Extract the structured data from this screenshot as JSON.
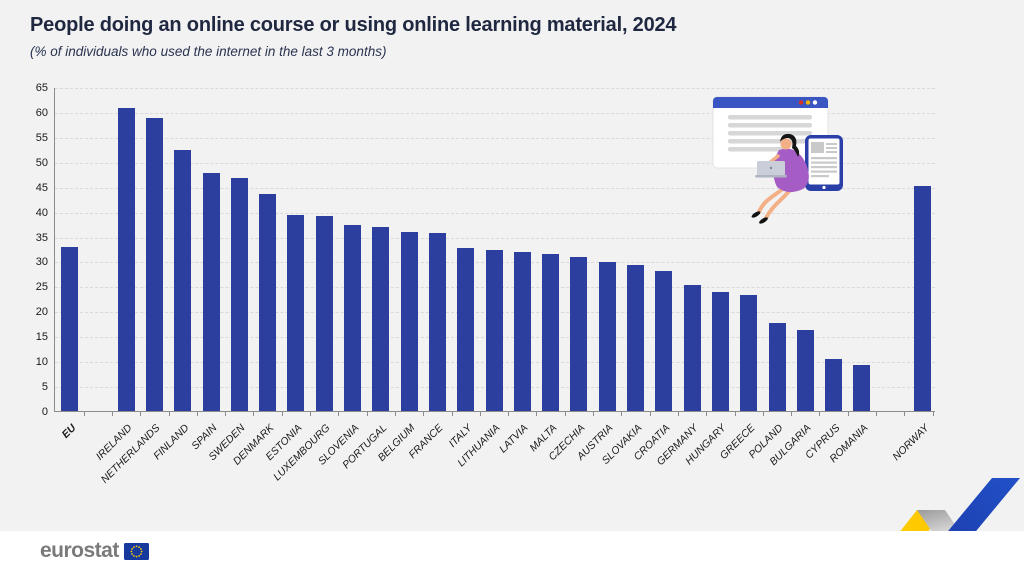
{
  "chart_data": {
    "type": "bar",
    "title": "People doing an online course or using online learning material, 2024",
    "subtitle": "(% of individuals who used the internet in the last 3 months)",
    "categories": [
      "EU",
      "IRELAND",
      "NETHERLANDS",
      "FINLAND",
      "SPAIN",
      "SWEDEN",
      "DENMARK",
      "ESTONIA",
      "LUXEMBOURG",
      "SLOVENIA",
      "PORTUGAL",
      "BELGIUM",
      "FRANCE",
      "ITALY",
      "LITHUANIA",
      "LATVIA",
      "MALTA",
      "CZECHIA",
      "AUSTRIA",
      "SLOVAKIA",
      "CROATIA",
      "GERMANY",
      "HUNGARY",
      "GREECE",
      "POLAND",
      "BULGARIA",
      "CYPRUS",
      "ROMANIA",
      "NORWAY"
    ],
    "values": [
      33.0,
      60.8,
      58.8,
      52.3,
      47.7,
      46.8,
      43.6,
      39.4,
      39.2,
      37.3,
      36.9,
      36.0,
      35.7,
      32.7,
      32.4,
      32.0,
      31.6,
      31.0,
      29.9,
      29.3,
      28.1,
      25.3,
      23.8,
      23.3,
      17.7,
      16.2,
      10.4,
      9.3,
      45.2
    ],
    "xlabel": "",
    "ylabel": "",
    "ylim": [
      0,
      65
    ],
    "ytick_step": 5,
    "grid": "horizontal-dashed",
    "legend": "none",
    "bar_color": "#2c3e9e",
    "bold_categories": [
      "EU"
    ],
    "extra_gap_after": {
      "EU": 1,
      "ROMANIA": 1.15
    }
  },
  "footer": {
    "logo_text": "eurostat"
  },
  "decorations": {
    "illustration": "woman-with-laptop-browser-and-tablet",
    "corner_ribbon": "yellow-gray-blue-trend-arrow",
    "eu_flag": "blue-square-yellow-stars"
  },
  "colors": {
    "canvas_bg": "#f2f2f2",
    "footer_bg": "#ffffff",
    "bar": "#2c3e9e",
    "title_text": "#1f2840",
    "axis": "#8c8c8c",
    "gridline": "#d9d9d9",
    "logo_gray": "#7a7a7a",
    "flag_blue": "#16399e",
    "star_yellow": "#ffcc00",
    "ribbon_yellow": "#ffcc00",
    "ribbon_blue": "#2150c8"
  }
}
